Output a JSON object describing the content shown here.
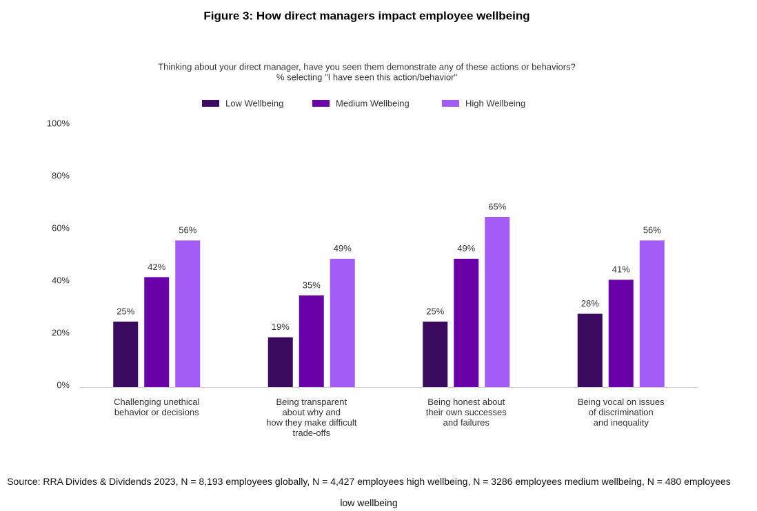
{
  "chart_data": {
    "type": "bar",
    "title": "Figure 3: How direct managers impact employee wellbeing",
    "subtitle": [
      "Thinking about your direct manager, have you seen them demonstrate any of these actions or behaviors?",
      "% selecting \"I have seen this action/behavior\""
    ],
    "categories": [
      "Challenging unethical\nbehavior or decisions",
      "Being transparent\nabout why and\nhow they make difficult\ntrade-offs",
      "Being honest about\ntheir own successes\nand failures",
      "Being vocal on issues\nof discrimination\nand inequality"
    ],
    "series": [
      {
        "name": "Low Wellbeing",
        "color": "#3a0a5e",
        "values": [
          25,
          19,
          25,
          28
        ],
        "value_labels": [
          "25%",
          "19%",
          "25%",
          "28%"
        ]
      },
      {
        "name": "Medium Wellbeing",
        "color": "#6a00a8",
        "values": [
          42,
          35,
          49,
          41
        ],
        "value_labels": [
          "42%",
          "35%",
          "49%",
          "41%"
        ]
      },
      {
        "name": "High Wellbeing",
        "color": "#a35cf5",
        "values": [
          56,
          49,
          65,
          56
        ],
        "value_labels": [
          "56%",
          "49%",
          "65%",
          "56%"
        ]
      }
    ],
    "ylim": [
      0,
      100
    ],
    "yticks": [
      {
        "value": 0,
        "label": "0%"
      },
      {
        "value": 20,
        "label": "20%"
      },
      {
        "value": 40,
        "label": "40%"
      },
      {
        "value": 60,
        "label": "60%"
      },
      {
        "value": 80,
        "label": "80%"
      },
      {
        "value": 100,
        "label": "100%"
      }
    ],
    "grid": false,
    "legend": "top",
    "source": "Source: RRA Divides & Dividends 2023, N = 8,193 employees globally, N = 4,427 employees high wellbeing, N = 3286 employees medium wellbeing, N = 480 employees low wellbeing"
  }
}
